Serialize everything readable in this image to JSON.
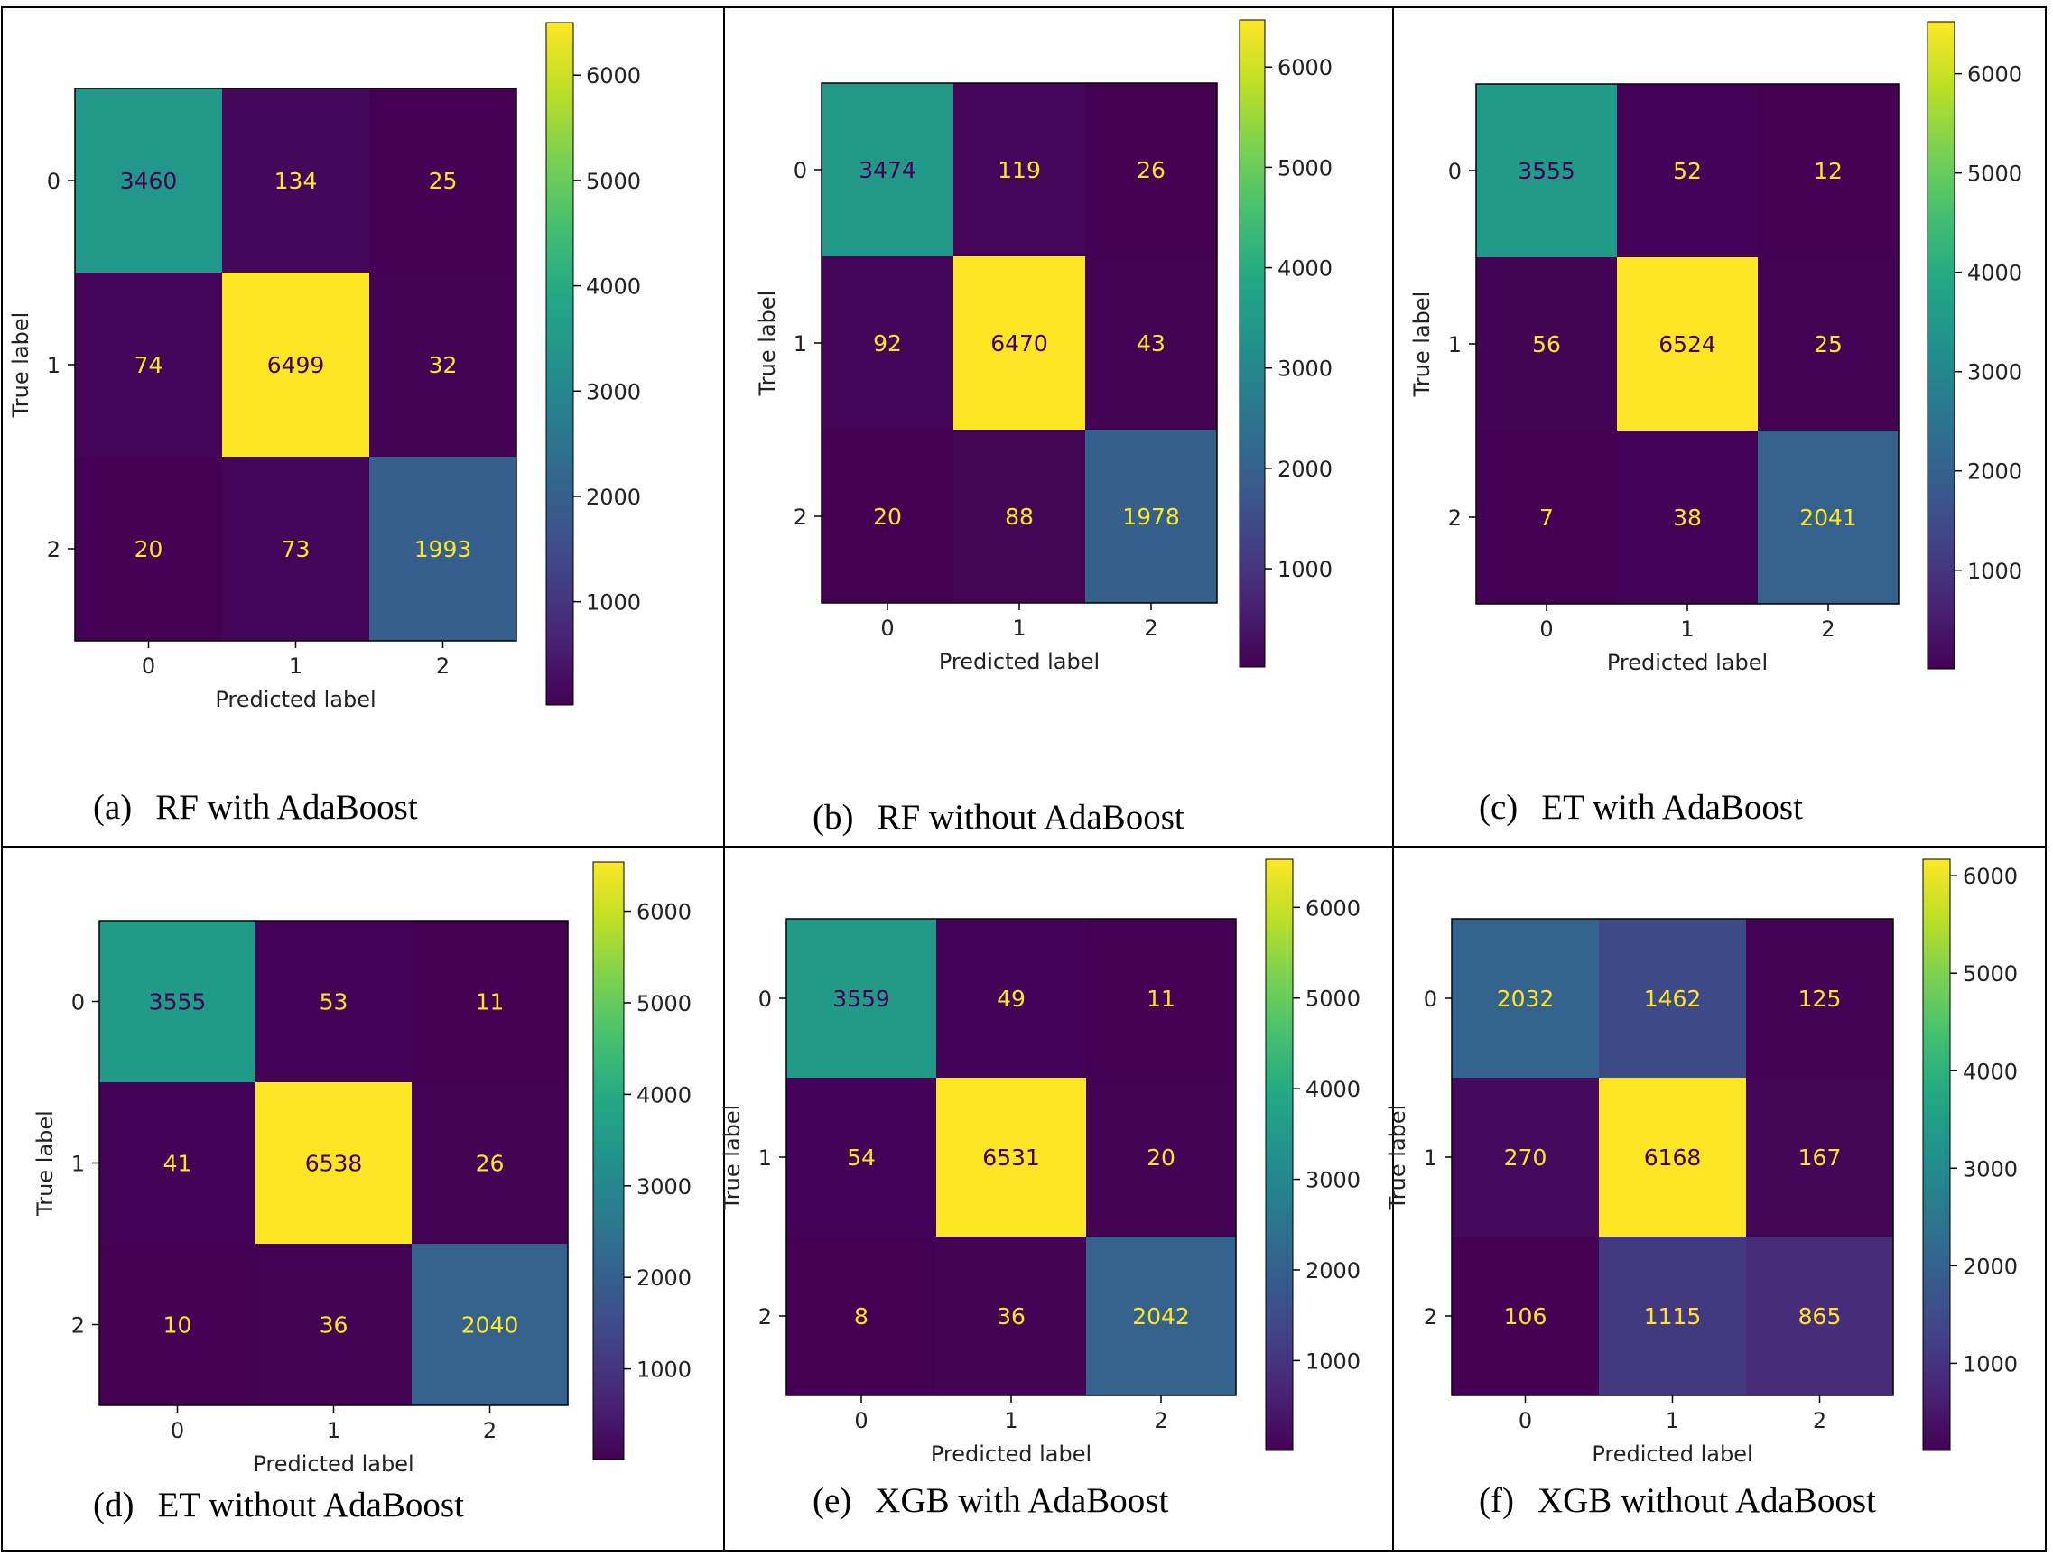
{
  "chart_data": [
    {
      "type": "heatmap",
      "caption_tag": "(a)",
      "caption_text": "RF with AdaBoost",
      "matrix": [
        [
          3460,
          134,
          25
        ],
        [
          74,
          6499,
          32
        ],
        [
          20,
          73,
          1993
        ]
      ],
      "x_tick_labels": [
        "0",
        "1",
        "2"
      ],
      "y_tick_labels": [
        "0",
        "1",
        "2"
      ],
      "xlabel": "Predicted label",
      "ylabel": "True label",
      "colormap": "viridis",
      "colorbar_range": [
        20,
        6499
      ],
      "colorbar_ticks": [
        1000,
        2000,
        3000,
        4000,
        5000,
        6000
      ]
    },
    {
      "type": "heatmap",
      "caption_tag": "(b)",
      "caption_text": "RF without AdaBoost",
      "matrix": [
        [
          3474,
          119,
          26
        ],
        [
          92,
          6470,
          43
        ],
        [
          20,
          88,
          1978
        ]
      ],
      "x_tick_labels": [
        "0",
        "1",
        "2"
      ],
      "y_tick_labels": [
        "0",
        "1",
        "2"
      ],
      "xlabel": "Predicted label",
      "ylabel": "True label",
      "colormap": "viridis",
      "colorbar_range": [
        20,
        6470
      ],
      "colorbar_ticks": [
        1000,
        2000,
        3000,
        4000,
        5000,
        6000
      ]
    },
    {
      "type": "heatmap",
      "caption_tag": "(c)",
      "caption_text": "ET with AdaBoost",
      "matrix": [
        [
          3555,
          52,
          12
        ],
        [
          56,
          6524,
          25
        ],
        [
          7,
          38,
          2041
        ]
      ],
      "x_tick_labels": [
        "0",
        "1",
        "2"
      ],
      "y_tick_labels": [
        "0",
        "1",
        "2"
      ],
      "xlabel": "Predicted label",
      "ylabel": "True label",
      "colormap": "viridis",
      "colorbar_range": [
        7,
        6524
      ],
      "colorbar_ticks": [
        1000,
        2000,
        3000,
        4000,
        5000,
        6000
      ]
    },
    {
      "type": "heatmap",
      "caption_tag": "(d)",
      "caption_text": "ET without AdaBoost",
      "matrix": [
        [
          3555,
          53,
          11
        ],
        [
          41,
          6538,
          26
        ],
        [
          10,
          36,
          2040
        ]
      ],
      "x_tick_labels": [
        "0",
        "1",
        "2"
      ],
      "y_tick_labels": [
        "0",
        "1",
        "2"
      ],
      "xlabel": "Predicted label",
      "ylabel": "True label",
      "colormap": "viridis",
      "colorbar_range": [
        10,
        6538
      ],
      "colorbar_ticks": [
        1000,
        2000,
        3000,
        4000,
        5000,
        6000
      ]
    },
    {
      "type": "heatmap",
      "caption_tag": "(e)",
      "caption_text": "XGB with AdaBoost",
      "matrix": [
        [
          3559,
          49,
          11
        ],
        [
          54,
          6531,
          20
        ],
        [
          8,
          36,
          2042
        ]
      ],
      "x_tick_labels": [
        "0",
        "1",
        "2"
      ],
      "y_tick_labels": [
        "0",
        "1",
        "2"
      ],
      "xlabel": "Predicted label",
      "ylabel": "True label",
      "colormap": "viridis",
      "colorbar_range": [
        8,
        6531
      ],
      "colorbar_ticks": [
        1000,
        2000,
        3000,
        4000,
        5000,
        6000
      ]
    },
    {
      "type": "heatmap",
      "caption_tag": "(f)",
      "caption_text": "XGB without AdaBoost",
      "matrix": [
        [
          2032,
          1462,
          125
        ],
        [
          270,
          6168,
          167
        ],
        [
          106,
          1115,
          865
        ]
      ],
      "x_tick_labels": [
        "0",
        "1",
        "2"
      ],
      "y_tick_labels": [
        "0",
        "1",
        "2"
      ],
      "xlabel": "Predicted label",
      "ylabel": "True label",
      "colormap": "viridis",
      "colorbar_range": [
        106,
        6168
      ],
      "colorbar_ticks": [
        1000,
        2000,
        3000,
        4000,
        5000,
        6000
      ]
    }
  ]
}
